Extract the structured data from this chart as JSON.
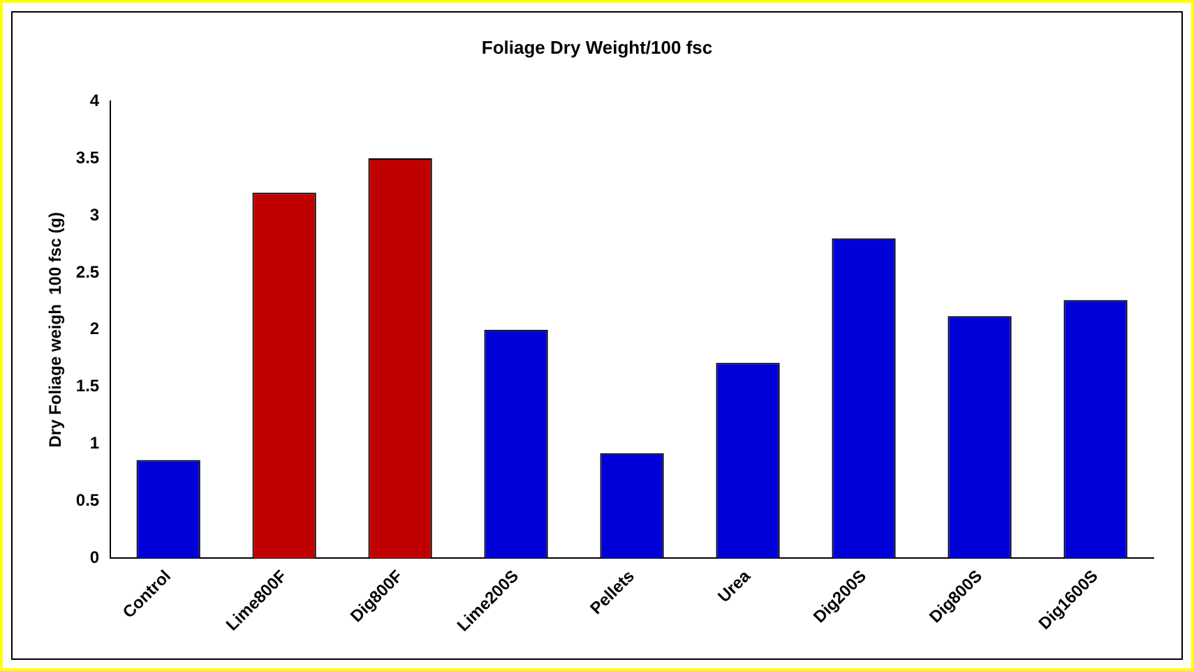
{
  "chart_data": {
    "type": "bar",
    "title": "Foliage Dry Weight/100 fsc",
    "ylabel": "Dry Foliage weigh  100 fsc (g)",
    "categories": [
      "Control",
      "Lime800F",
      "Dig800F",
      "Lime200S",
      "Pellets",
      "Urea",
      "Dig200S",
      "Dig800S",
      "Dig1600S"
    ],
    "values": [
      0.86,
      3.2,
      3.5,
      2.0,
      0.92,
      1.71,
      2.8,
      2.12,
      2.26
    ],
    "colors": [
      "#0000d8",
      "#c00000",
      "#c00000",
      "#0000d8",
      "#0000d8",
      "#0000d8",
      "#0000d8",
      "#0000d8",
      "#0000d8"
    ],
    "ylim": [
      0,
      4
    ],
    "yticks": [
      0,
      0.5,
      1,
      1.5,
      2,
      2.5,
      3,
      3.5,
      4
    ],
    "grid": false,
    "legend": false
  }
}
